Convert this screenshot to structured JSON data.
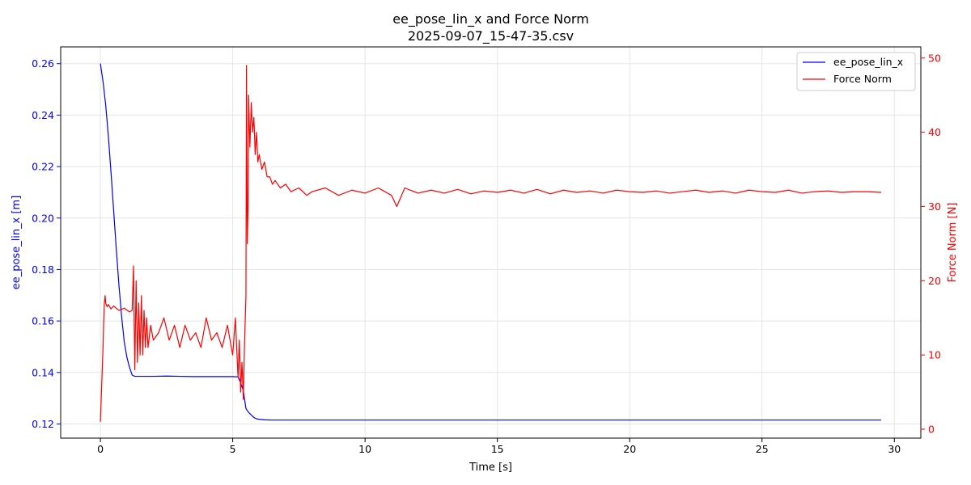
{
  "chart_data": {
    "type": "line",
    "title": "ee_pose_lin_x and Force Norm",
    "subtitle": "2025-09-07_15-47-35.csv",
    "xlabel": "Time [s]",
    "ylabel_left": "ee_pose_lin_x [m]",
    "ylabel_right": "Force Norm [N]",
    "xlim": [
      -1.5,
      31.0
    ],
    "ylim_left": [
      0.1145,
      0.2665
    ],
    "ylim_right": [
      -1.2,
      51.5
    ],
    "x_ticks": [
      0,
      5,
      10,
      15,
      20,
      25,
      30
    ],
    "y_ticks_left": [
      0.12,
      0.14,
      0.16,
      0.18,
      0.2,
      0.22,
      0.24,
      0.26
    ],
    "y_ticks_left_labels": [
      "0.12",
      "0.14",
      "0.16",
      "0.18",
      "0.20",
      "0.22",
      "0.24",
      "0.26"
    ],
    "y_ticks_right": [
      0,
      10,
      20,
      30,
      40,
      50
    ],
    "grid": true,
    "legend_position": "top-right",
    "colors": {
      "left_axis": "#0000ff",
      "right_axis": "#ff0000"
    },
    "series": [
      {
        "name": "ee_pose_lin_x",
        "axis": "left",
        "color": "#0000ff",
        "x": [
          0,
          0.1,
          0.2,
          0.3,
          0.4,
          0.5,
          0.6,
          0.7,
          0.8,
          0.9,
          1.0,
          1.1,
          1.2,
          1.3,
          1.5,
          2.0,
          2.5,
          3.0,
          3.5,
          4.0,
          4.5,
          5.0,
          5.2,
          5.3,
          5.4,
          5.5,
          5.6,
          5.7,
          5.8,
          5.9,
          6.0,
          6.2,
          6.5,
          7.0,
          8.0,
          10.0,
          15.0,
          20.0,
          25.0,
          29.5
        ],
        "y": [
          0.26,
          0.253,
          0.244,
          0.232,
          0.218,
          0.203,
          0.188,
          0.174,
          0.162,
          0.152,
          0.146,
          0.142,
          0.139,
          0.1385,
          0.1385,
          0.1385,
          0.1386,
          0.1385,
          0.1384,
          0.1384,
          0.1384,
          0.1384,
          0.1383,
          0.136,
          0.133,
          0.126,
          0.1245,
          0.1235,
          0.1225,
          0.122,
          0.1218,
          0.1216,
          0.1215,
          0.1215,
          0.1215,
          0.1215,
          0.1215,
          0.1215,
          0.1215,
          0.1215
        ]
      },
      {
        "name": "Force Norm",
        "axis": "right",
        "color": "#ff0000",
        "x": [
          0,
          0.02,
          0.05,
          0.08,
          0.1,
          0.12,
          0.15,
          0.18,
          0.2,
          0.25,
          0.3,
          0.4,
          0.5,
          0.7,
          0.9,
          1.1,
          1.2,
          1.25,
          1.3,
          1.35,
          1.4,
          1.45,
          1.5,
          1.55,
          1.6,
          1.65,
          1.7,
          1.75,
          1.8,
          1.9,
          2.0,
          2.2,
          2.4,
          2.6,
          2.8,
          3.0,
          3.2,
          3.4,
          3.6,
          3.8,
          4.0,
          4.2,
          4.4,
          4.6,
          4.8,
          5.0,
          5.1,
          5.2,
          5.25,
          5.3,
          5.35,
          5.4,
          5.45,
          5.5,
          5.52,
          5.55,
          5.58,
          5.6,
          5.65,
          5.7,
          5.75,
          5.8,
          5.85,
          5.9,
          5.95,
          6.0,
          6.1,
          6.2,
          6.3,
          6.4,
          6.5,
          6.6,
          6.8,
          7.0,
          7.2,
          7.5,
          7.8,
          8.0,
          8.5,
          9.0,
          9.5,
          10.0,
          10.5,
          11.0,
          11.2,
          11.5,
          12.0,
          12.5,
          13.0,
          13.5,
          14.0,
          14.5,
          15.0,
          15.5,
          16.0,
          16.5,
          17.0,
          17.5,
          18.0,
          18.5,
          19.0,
          19.5,
          20.0,
          20.5,
          21.0,
          21.5,
          22.0,
          22.5,
          23.0,
          23.5,
          24.0,
          24.5,
          25.0,
          25.5,
          26.0,
          26.5,
          27.0,
          27.5,
          28.0,
          28.5,
          29.0,
          29.5
        ],
        "y": [
          1,
          3,
          6,
          9,
          11,
          14,
          17,
          18,
          17,
          16.5,
          16.8,
          16.2,
          16.6,
          16.0,
          16.3,
          15.8,
          16.0,
          22,
          8,
          20,
          9,
          17,
          10,
          18,
          10,
          16,
          11,
          15,
          11,
          14,
          12,
          13,
          15,
          12,
          14,
          11,
          14,
          12,
          13,
          11,
          15,
          12,
          13,
          11,
          14,
          10,
          15,
          7,
          12,
          5,
          9,
          4,
          12,
          18,
          49,
          25,
          30,
          45,
          38,
          44,
          40,
          42,
          37,
          40,
          36,
          37,
          35,
          36,
          34,
          34,
          33,
          33.5,
          32.5,
          33,
          32,
          32.5,
          31.5,
          32,
          32.5,
          31.5,
          32.2,
          31.8,
          32.5,
          31.5,
          30,
          32.5,
          31.8,
          32.2,
          31.8,
          32.3,
          31.7,
          32.1,
          31.9,
          32.2,
          31.8,
          32.3,
          31.7,
          32.2,
          31.9,
          32.1,
          31.8,
          32.2,
          32.0,
          31.9,
          32.1,
          31.8,
          32.0,
          32.2,
          31.9,
          32.1,
          31.8,
          32.2,
          32.0,
          31.9,
          32.2,
          31.8,
          32.0,
          32.1,
          31.9,
          32.0,
          32.0,
          31.9
        ]
      }
    ]
  }
}
